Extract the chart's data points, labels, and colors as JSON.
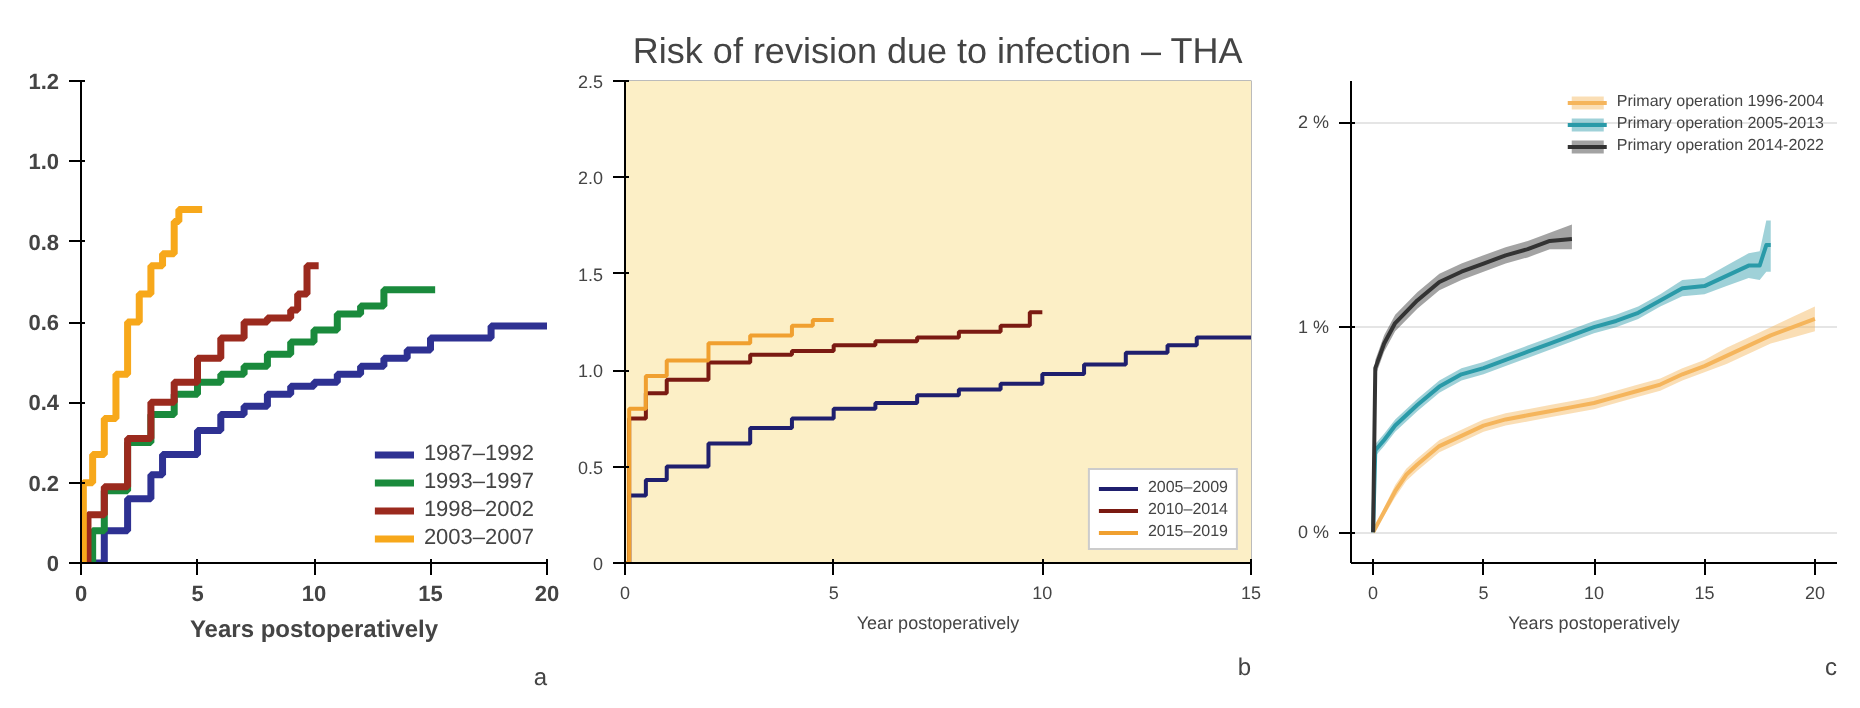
{
  "chart_data": [
    {
      "type": "step",
      "xlabel": "Years postoperatively",
      "annotations": [
        "a"
      ],
      "xlim": [
        0,
        20
      ],
      "ylim": [
        0,
        1.2
      ],
      "xticks": [
        0,
        5,
        10,
        15,
        20
      ],
      "yticks": [
        0,
        0.2,
        0.4,
        0.6,
        0.8,
        {
          "value": 1.0,
          "label": "1.0"
        },
        1.2
      ],
      "grid": false,
      "legend": "bottom right",
      "series": [
        {
          "name": "1987–1992",
          "color": "#2e3192",
          "x": [
            0.4,
            1,
            2,
            3,
            3.5,
            5,
            6,
            7,
            8,
            9,
            10,
            11,
            12,
            13,
            14,
            15,
            17.5,
            17.6,
            20
          ],
          "values": [
            0,
            0.08,
            0.16,
            0.22,
            0.27,
            0.33,
            0.37,
            0.39,
            0.42,
            0.44,
            0.45,
            0.47,
            0.49,
            0.51,
            0.53,
            0.56,
            0.56,
            0.59,
            0.59
          ]
        },
        {
          "name": "1993–1997",
          "color": "#1a8a3c",
          "x": [
            0.2,
            0.5,
            1,
            2,
            3,
            4,
            5,
            6,
            7,
            8,
            9,
            10,
            11,
            12,
            13,
            15.2
          ],
          "values": [
            0,
            0.08,
            0.18,
            0.3,
            0.37,
            0.42,
            0.45,
            0.47,
            0.49,
            0.52,
            0.55,
            0.58,
            0.62,
            0.64,
            0.68,
            0.68
          ]
        },
        {
          "name": "1998–2002",
          "color": "#9b2a1e",
          "x": [
            0.1,
            0.3,
            1,
            2,
            3,
            4,
            5,
            6,
            7,
            8,
            9,
            9.3,
            9.7,
            10.2
          ],
          "values": [
            0,
            0.12,
            0.19,
            0.31,
            0.4,
            0.45,
            0.51,
            0.56,
            0.6,
            0.61,
            0.63,
            0.67,
            0.74,
            0.74
          ]
        },
        {
          "name": "2003–2007",
          "color": "#f7a81b",
          "x": [
            0,
            0.1,
            0.5,
            1,
            1.5,
            2,
            2.5,
            3,
            3.5,
            4,
            4.2,
            5.2
          ],
          "values": [
            0,
            0.2,
            0.27,
            0.36,
            0.47,
            0.6,
            0.67,
            0.74,
            0.77,
            0.85,
            0.88,
            0.88
          ]
        }
      ]
    },
    {
      "type": "step",
      "title": "Risk of revision due to infection – THA",
      "xlabel": "Year postoperatively",
      "annotations": [
        "b"
      ],
      "xlim": [
        0,
        15
      ],
      "ylim": [
        0,
        2.5
      ],
      "xticks": [
        0,
        5,
        10,
        15
      ],
      "yticks": [
        0,
        0.5,
        {
          "value": 1.0,
          "label": "1.0"
        },
        1.5,
        {
          "value": 2.0,
          "label": "2.0"
        },
        2.5
      ],
      "grid": false,
      "legend": "bottom right",
      "bands": [
        {
          "axis": "y",
          "from": 0,
          "to": 2.5,
          "color": "#fcefc6"
        }
      ],
      "series": [
        {
          "name": "2005–2009",
          "color": "#1f1f6e",
          "x": [
            0,
            0.1,
            0.5,
            1,
            2,
            3,
            4,
            5,
            6,
            7,
            8,
            9,
            10,
            11,
            12,
            13,
            13.6,
            13.7,
            15
          ],
          "values": [
            0,
            0.35,
            0.43,
            0.5,
            0.62,
            0.7,
            0.75,
            0.8,
            0.83,
            0.87,
            0.9,
            0.93,
            0.98,
            1.03,
            1.09,
            1.13,
            1.13,
            1.17,
            1.17
          ]
        },
        {
          "name": "2010–2014",
          "color": "#7a1a12",
          "x": [
            0,
            0.1,
            0.5,
            1,
            2,
            3,
            4,
            5,
            6,
            7,
            8,
            9,
            9.6,
            9.7,
            10
          ],
          "values": [
            0,
            0.75,
            0.88,
            0.95,
            1.04,
            1.08,
            1.1,
            1.13,
            1.15,
            1.17,
            1.2,
            1.23,
            1.23,
            1.3,
            1.3
          ]
        },
        {
          "name": "2015–2019",
          "color": "#f0a030",
          "x": [
            0,
            0.1,
            0.5,
            1,
            2,
            3,
            4,
            4.5,
            5
          ],
          "values": [
            0,
            0.8,
            0.97,
            1.05,
            1.14,
            1.18,
            1.23,
            1.26,
            1.26
          ]
        }
      ]
    },
    {
      "type": "line",
      "xlabel": "Years postoperatively",
      "annotations": [
        "c"
      ],
      "xlim": [
        -1,
        21
      ],
      "ylim": [
        -0.15,
        2.2
      ],
      "xticks": [
        0,
        5,
        10,
        15,
        20
      ],
      "yticks": [
        {
          "value": 0,
          "label": "0 %"
        },
        {
          "value": 1,
          "label": "1 %"
        },
        {
          "value": 2,
          "label": "2 %"
        }
      ],
      "grid": "y",
      "legend": "top right",
      "series": [
        {
          "name": "Primary operation 1996-2004",
          "color": "#f5b55c",
          "x": [
            0,
            0.5,
            1,
            1.5,
            2,
            3,
            4,
            5,
            6,
            7,
            8,
            9,
            10,
            11,
            12,
            13,
            14,
            15,
            16,
            17,
            18,
            19,
            20
          ],
          "values": [
            0,
            0.1,
            0.2,
            0.28,
            0.33,
            0.42,
            0.47,
            0.52,
            0.55,
            0.57,
            0.59,
            0.61,
            0.63,
            0.66,
            0.69,
            0.72,
            0.77,
            0.81,
            0.86,
            0.91,
            0.96,
            1.0,
            1.04
          ],
          "lower": [
            0,
            0.08,
            0.17,
            0.25,
            0.3,
            0.39,
            0.44,
            0.49,
            0.52,
            0.54,
            0.56,
            0.58,
            0.6,
            0.63,
            0.66,
            0.69,
            0.74,
            0.78,
            0.82,
            0.87,
            0.92,
            0.95,
            0.98
          ],
          "upper": [
            0,
            0.12,
            0.23,
            0.31,
            0.36,
            0.45,
            0.5,
            0.55,
            0.58,
            0.6,
            0.62,
            0.64,
            0.66,
            0.69,
            0.72,
            0.75,
            0.8,
            0.84,
            0.9,
            0.95,
            1.0,
            1.05,
            1.1
          ]
        },
        {
          "name": "Primary operation 2005-2013",
          "color": "#2a9aa8",
          "x": [
            0,
            0.1,
            0.5,
            1,
            2,
            3,
            4,
            5,
            6,
            7,
            8,
            9,
            10,
            11,
            12,
            13,
            14,
            15,
            16,
            17,
            17.5,
            17.8,
            18
          ],
          "values": [
            0,
            0.4,
            0.45,
            0.52,
            0.62,
            0.71,
            0.77,
            0.8,
            0.84,
            0.88,
            0.92,
            0.96,
            1.0,
            1.03,
            1.07,
            1.13,
            1.19,
            1.2,
            1.25,
            1.3,
            1.3,
            1.4,
            1.4
          ],
          "lower": [
            0,
            0.37,
            0.42,
            0.49,
            0.59,
            0.68,
            0.74,
            0.77,
            0.81,
            0.85,
            0.89,
            0.93,
            0.97,
            1.0,
            1.04,
            1.1,
            1.15,
            1.16,
            1.2,
            1.24,
            1.23,
            1.27,
            1.27
          ],
          "upper": [
            0,
            0.43,
            0.48,
            0.55,
            0.65,
            0.74,
            0.8,
            0.83,
            0.87,
            0.91,
            0.95,
            0.99,
            1.03,
            1.06,
            1.1,
            1.16,
            1.23,
            1.24,
            1.3,
            1.36,
            1.37,
            1.52,
            1.52
          ]
        },
        {
          "name": "Primary operation 2014-2022",
          "color": "#333333",
          "x": [
            0,
            0.1,
            0.5,
            1,
            2,
            3,
            4,
            5,
            6,
            7,
            8,
            9
          ],
          "values": [
            0,
            0.8,
            0.92,
            1.02,
            1.13,
            1.22,
            1.27,
            1.31,
            1.35,
            1.38,
            1.42,
            1.43
          ],
          "lower": [
            0,
            0.76,
            0.88,
            0.98,
            1.09,
            1.18,
            1.23,
            1.27,
            1.31,
            1.34,
            1.38,
            1.38
          ],
          "upper": [
            0,
            0.84,
            0.96,
            1.06,
            1.17,
            1.26,
            1.31,
            1.35,
            1.39,
            1.42,
            1.46,
            1.5
          ]
        }
      ]
    }
  ]
}
